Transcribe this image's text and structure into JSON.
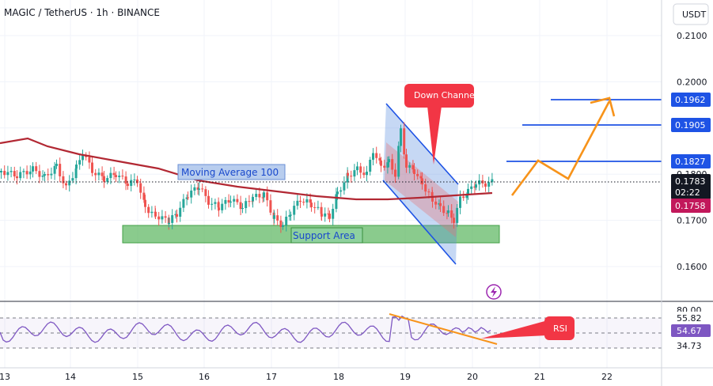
{
  "header": {
    "symbol": "MAGIC / TetherUS · 1h · BINANCE",
    "currency": "USDT"
  },
  "chart_data": {
    "type": "candlestick",
    "title": "MAGIC / TetherUS · 1h · BINANCE",
    "y_axis": {
      "unit": "USDT",
      "ticks": [
        "0.1600",
        "0.1700",
        "0.1800",
        "0.1900",
        "0.2000",
        "0.2100"
      ],
      "range": [
        0.1545,
        0.2165
      ]
    },
    "x_axis": {
      "ticks": [
        "13",
        "14",
        "15",
        "16",
        "17",
        "18",
        "19",
        "20",
        "21",
        "22"
      ]
    },
    "price_labels": [
      {
        "value": "0.1962",
        "color": "#1e53e5"
      },
      {
        "value": "0.1905",
        "color": "#1e53e5"
      },
      {
        "value": "0.1827",
        "color": "#1e53e5"
      },
      {
        "value": "0.1783",
        "color": "#131722"
      },
      {
        "value": "02:22",
        "color": "#131722"
      },
      {
        "value": "0.1758",
        "color": "#c2185b"
      }
    ],
    "target_levels": [
      0.1962,
      0.1905,
      0.1827
    ],
    "current_price": 0.1783,
    "moving_average_value": 0.1758,
    "annotations": {
      "moving_average": "Moving Average 100",
      "support": "Support Area",
      "down_channel": "Down Channel",
      "rsi_tag": "RSI"
    },
    "support_area": {
      "low": 0.1655,
      "high": 0.1685
    },
    "rsi": {
      "ticks": [
        "80.00",
        "55.82",
        "54.67",
        "34.73"
      ],
      "current": 54.67,
      "upper": 55.82,
      "lower": 34.73
    },
    "colors": {
      "up": "#26a69a",
      "down": "#ef5350",
      "ma": "#b22833",
      "target_line": "#1e53e5",
      "projection": "#f7931a",
      "rsi_line": "#7e57c2",
      "support_fill": "#4caf50"
    }
  }
}
